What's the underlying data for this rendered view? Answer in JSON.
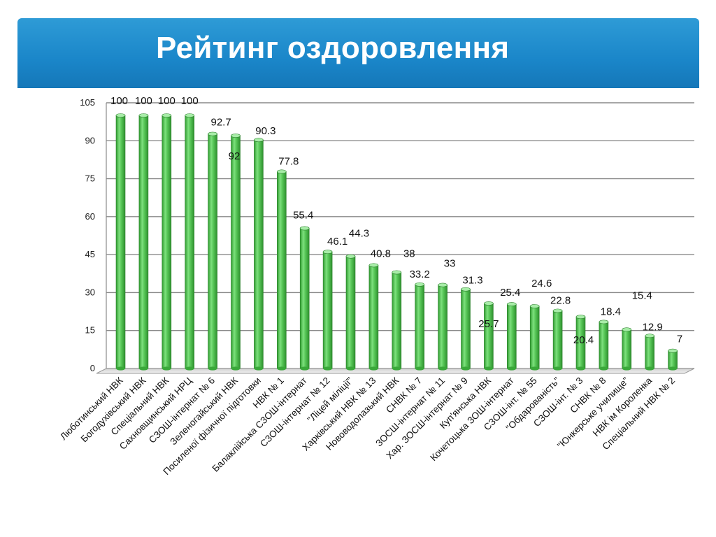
{
  "title": "Рейтинг оздоровлення",
  "chart_data": {
    "type": "bar",
    "ylim": [
      0,
      105
    ],
    "yticks": [
      "0",
      "15",
      "30",
      "45",
      "60",
      "75",
      "90",
      "105"
    ],
    "grid": true,
    "bar_color": "#4cc04c",
    "categories": [
      "Люботинський НВК",
      "Богодухівський НВК",
      "Спеціальний НВК",
      "Сахновщинський НРЦ",
      "СЗОШ-інтернат № 6",
      "Зеленогайський НВК",
      "Посиленої фізичної підготовки",
      "НВК № 1",
      "Балаклійська СЗОШ-інтернат",
      "СЗОШ-інтернат № 12",
      "\"Ліцей міліції\"",
      "Харківський НВК № 13",
      "Нововодолазький НВК",
      "СНВК № 7",
      "ЗОСШ-інтернат № 11",
      "Хар. ЗОСШ-інтернат № 9",
      "Куп'янська НВК",
      "Кочетоцька ЗОШ-інтернат",
      "СЗОШ-інт. № 55",
      "\"Обдарованість\"",
      "СЗОШ-інт. № 3",
      "СНВК № 8",
      "\"Юнкерське училище\"",
      "НВК ім Короленка",
      "Спеціальний НВК № 2"
    ],
    "values": [
      100,
      100,
      100,
      100,
      92.7,
      92,
      90.3,
      77.8,
      55.4,
      46.1,
      44.3,
      40.8,
      38,
      33.2,
      33,
      31.3,
      25.7,
      25.4,
      24.6,
      22.8,
      20.4,
      18.4,
      15.4,
      12.9,
      7
    ],
    "labels": [
      "100",
      "100",
      "100",
      "100",
      "92.7",
      "92",
      "90.3",
      "77.8",
      "55.4",
      "46.1",
      "44.3",
      "40.8",
      "38",
      "33.2",
      "33",
      "31.3",
      "25.7",
      "25.4",
      "24.6",
      "22.8",
      "20.4",
      "18.4",
      "15.4",
      "12.9",
      "7"
    ]
  }
}
